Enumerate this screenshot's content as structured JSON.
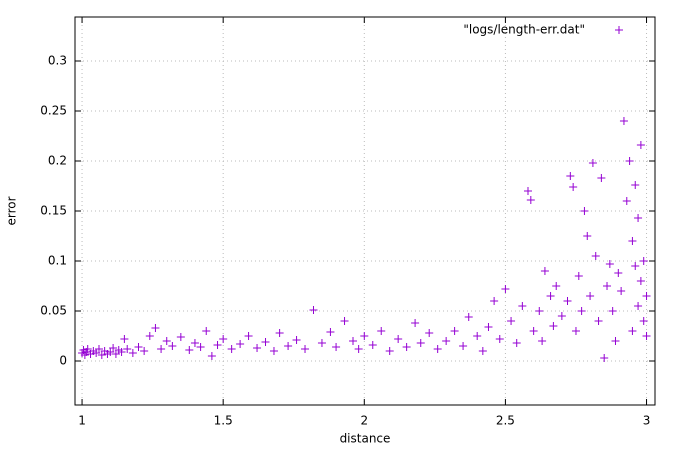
{
  "chart_data": {
    "type": "scatter",
    "x_label": "distance",
    "y_label": "error",
    "xlim": [
      0.975,
      3.03
    ],
    "ylim": [
      -0.044,
      0.344
    ],
    "xticks": [
      1,
      1.5,
      2,
      2.5,
      3
    ],
    "yticks": [
      0,
      0.05,
      0.1,
      0.15,
      0.2,
      0.25,
      0.3
    ],
    "grid": true,
    "legend": "top-right",
    "x": [
      1.0,
      1.005,
      1.01,
      1.015,
      1.02,
      1.03,
      1.04,
      1.05,
      1.06,
      1.07,
      1.08,
      1.09,
      1.1,
      1.11,
      1.12,
      1.13,
      1.14,
      1.15,
      1.16,
      1.18,
      1.2,
      1.22,
      1.24,
      1.26,
      1.28,
      1.3,
      1.32,
      1.35,
      1.38,
      1.4,
      1.42,
      1.44,
      1.46,
      1.48,
      1.5,
      1.53,
      1.56,
      1.59,
      1.62,
      1.65,
      1.68,
      1.7,
      1.73,
      1.76,
      1.79,
      1.82,
      1.85,
      1.88,
      1.9,
      1.93,
      1.96,
      1.98,
      2.0,
      2.03,
      2.06,
      2.09,
      2.12,
      2.15,
      2.18,
      2.2,
      2.23,
      2.26,
      2.29,
      2.32,
      2.35,
      2.37,
      2.4,
      2.42,
      2.44,
      2.46,
      2.48,
      2.5,
      2.52,
      2.54,
      2.56,
      2.58,
      2.59,
      2.6,
      2.62,
      2.63,
      2.64,
      2.66,
      2.67,
      2.68,
      2.7,
      2.72,
      2.73,
      2.74,
      2.75,
      2.76,
      2.77,
      2.78,
      2.79,
      2.8,
      2.81,
      2.82,
      2.83,
      2.84,
      2.85,
      2.86,
      2.87,
      2.88,
      2.89,
      2.9,
      2.91,
      2.92,
      2.93,
      2.94,
      2.95,
      2.96,
      2.97,
      2.98,
      2.99,
      3.0,
      2.99,
      3.0,
      2.98,
      2.97,
      2.96,
      2.95
    ],
    "series": [
      {
        "name": "\"logs/length-err.dat\"",
        "color": "#9400d3",
        "values": [
          0.008,
          0.011,
          0.006,
          0.009,
          0.012,
          0.007,
          0.01,
          0.008,
          0.012,
          0.006,
          0.01,
          0.007,
          0.009,
          0.013,
          0.007,
          0.011,
          0.009,
          0.022,
          0.012,
          0.008,
          0.014,
          0.01,
          0.025,
          0.033,
          0.012,
          0.02,
          0.015,
          0.024,
          0.011,
          0.018,
          0.014,
          0.03,
          0.005,
          0.016,
          0.022,
          0.012,
          0.017,
          0.025,
          0.013,
          0.019,
          0.01,
          0.028,
          0.015,
          0.021,
          0.012,
          0.051,
          0.018,
          0.029,
          0.014,
          0.04,
          0.02,
          0.012,
          0.025,
          0.016,
          0.03,
          0.01,
          0.022,
          0.014,
          0.038,
          0.018,
          0.028,
          0.012,
          0.02,
          0.03,
          0.015,
          0.044,
          0.025,
          0.01,
          0.034,
          0.06,
          0.022,
          0.072,
          0.04,
          0.018,
          0.055,
          0.17,
          0.161,
          0.03,
          0.05,
          0.02,
          0.09,
          0.065,
          0.035,
          0.075,
          0.045,
          0.06,
          0.185,
          0.174,
          0.03,
          0.085,
          0.05,
          0.15,
          0.125,
          0.065,
          0.198,
          0.105,
          0.04,
          0.183,
          0.003,
          0.075,
          0.097,
          0.05,
          0.02,
          0.088,
          0.07,
          0.24,
          0.16,
          0.2,
          0.12,
          0.176,
          0.143,
          0.216,
          0.1,
          0.065,
          0.04,
          0.025,
          0.08,
          0.055,
          0.095,
          0.03
        ]
      }
    ]
  }
}
